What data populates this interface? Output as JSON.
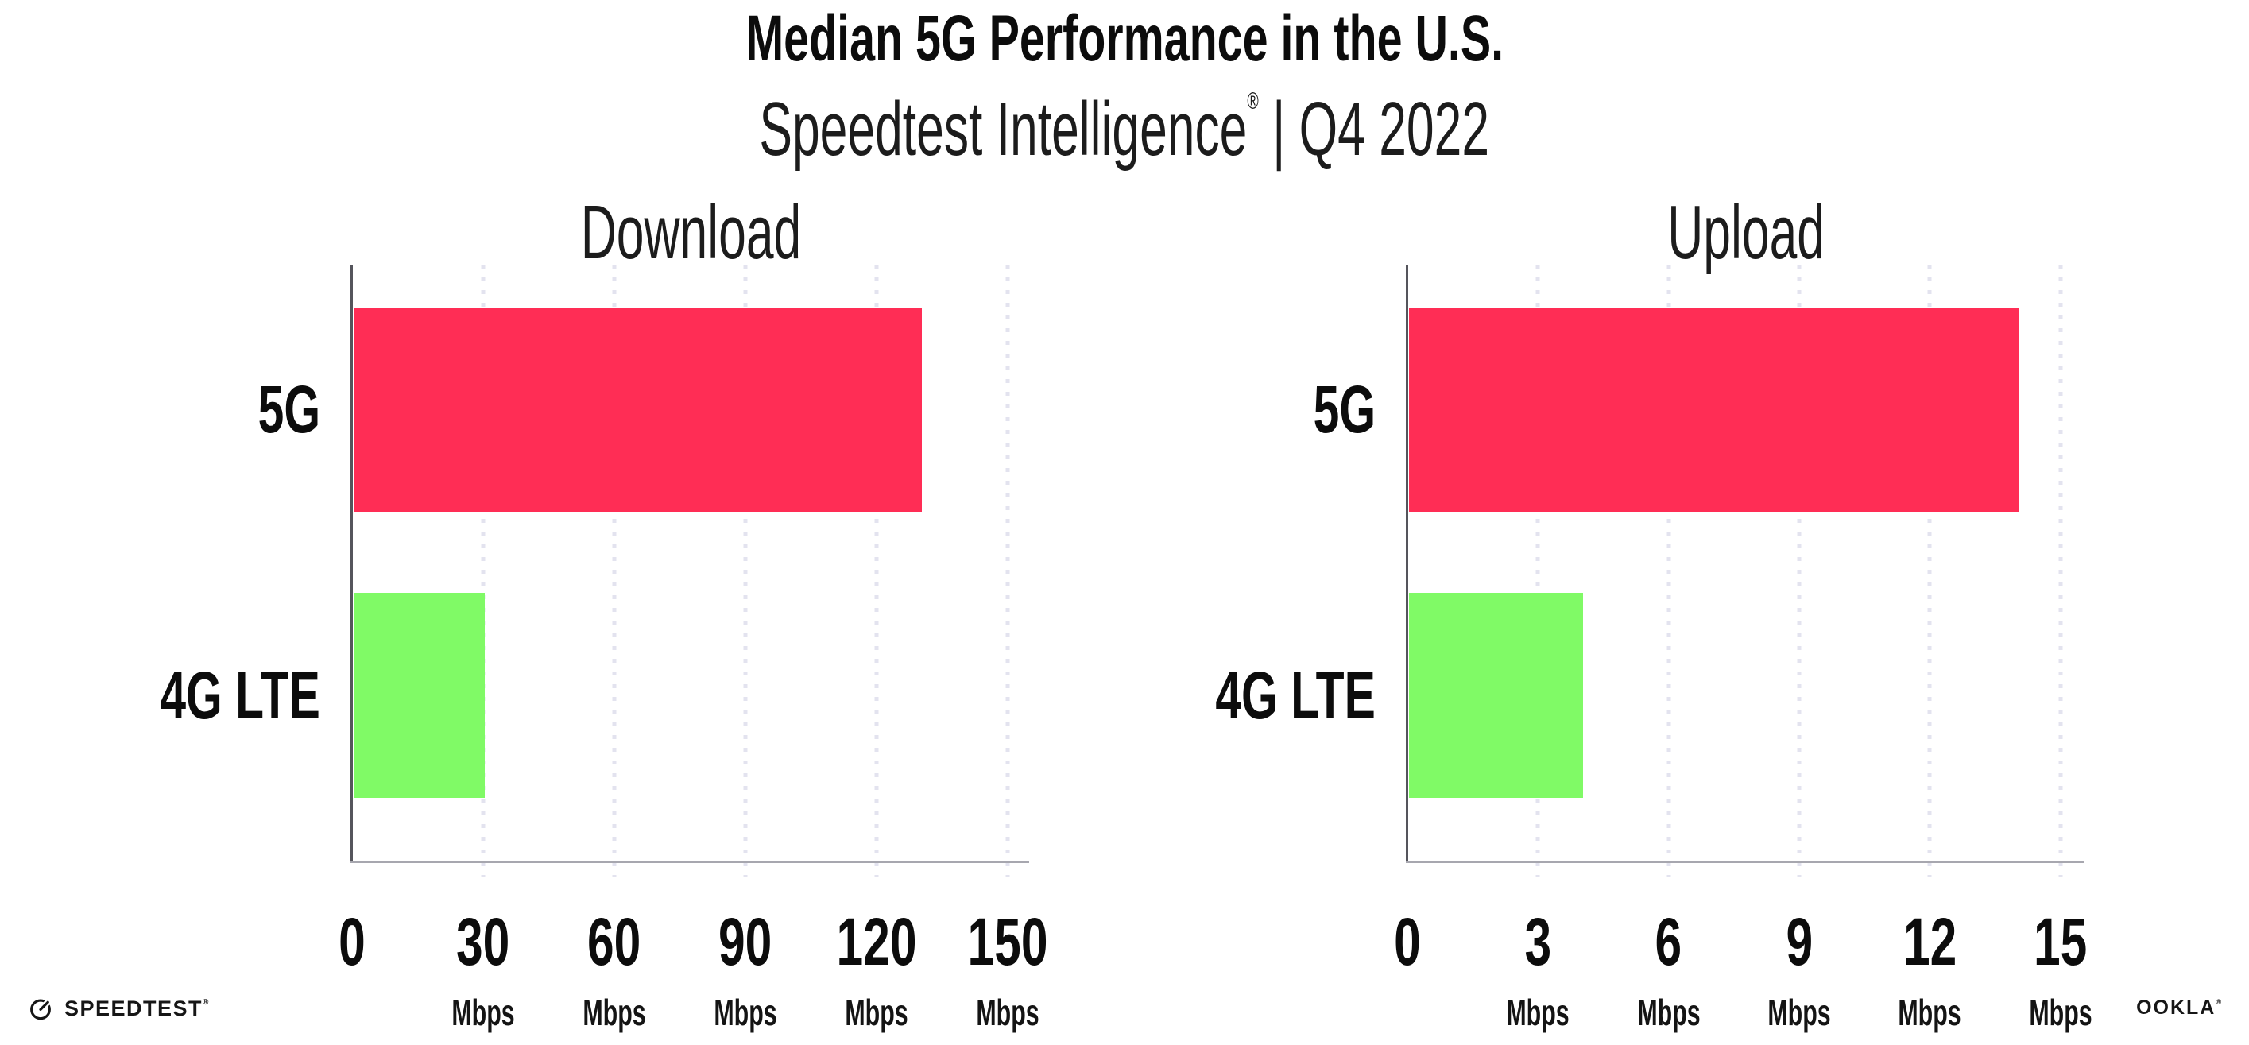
{
  "header": {
    "title": "Median 5G Performance in the U.S.",
    "subtitle_brand": "Speedtest Intelligence",
    "subtitle_reg": "®",
    "subtitle_rest": " | Q4 2022"
  },
  "footer": {
    "speedtest_label": "SPEEDTEST",
    "speedtest_reg": "®",
    "ookla_label": "OOKLA",
    "ookla_reg": "®"
  },
  "colors": {
    "bar_5g_pink": "#ff2d55",
    "bar_4g_green": "#80fa66",
    "gridline": "#e3e3ef",
    "x_axis_line": "#a7a7af",
    "y_axis_line": "#55555c",
    "text": "#111111",
    "background": "#ffffff"
  },
  "chart_data": [
    {
      "type": "bar",
      "orientation": "horizontal",
      "title": "Download",
      "categories": [
        "5G",
        "4G LTE"
      ],
      "values": [
        130,
        30
      ],
      "unit": "Mbps",
      "xticks": [
        0,
        30,
        60,
        90,
        120,
        150
      ],
      "xlim": [
        0,
        155
      ],
      "bar_colors": [
        "#ff2d55",
        "#80fa66"
      ],
      "grid": "vertical-dotted",
      "legend": "none"
    },
    {
      "type": "bar",
      "orientation": "horizontal",
      "title": "Upload",
      "categories": [
        "5G",
        "4G LTE"
      ],
      "values": [
        14,
        4
      ],
      "unit": "Mbps",
      "xticks": [
        0,
        3,
        6,
        9,
        12,
        15
      ],
      "xlim": [
        0,
        15.55
      ],
      "bar_colors": [
        "#ff2d55",
        "#80fa66"
      ],
      "grid": "vertical-dotted",
      "legend": "none"
    }
  ]
}
